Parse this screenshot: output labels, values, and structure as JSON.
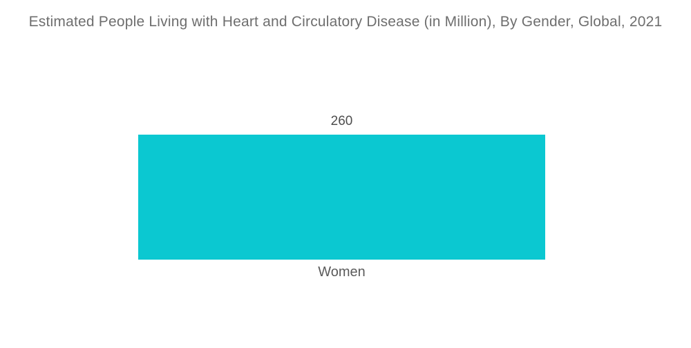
{
  "title": "Estimated People Living with Heart and Circulatory Disease (in Million), By Gender, Global, 2021",
  "chart_data": {
    "type": "bar",
    "title": "Estimated People Living with Heart and Circulatory Disease (in Million), By Gender, Global, 2021",
    "categories": [
      "Women"
    ],
    "values": [
      260
    ],
    "value_labels": [
      "260"
    ],
    "orientation": "vertical",
    "grid": false,
    "axes_visible": false,
    "legend": "none",
    "bar_color": "#0bc8d1"
  },
  "colors": {
    "background": "#ffffff",
    "title_text": "#6e6e6e",
    "value_text": "#4d4d4d",
    "category_text": "#5a5a5a",
    "bar": "#0bc8d1"
  }
}
